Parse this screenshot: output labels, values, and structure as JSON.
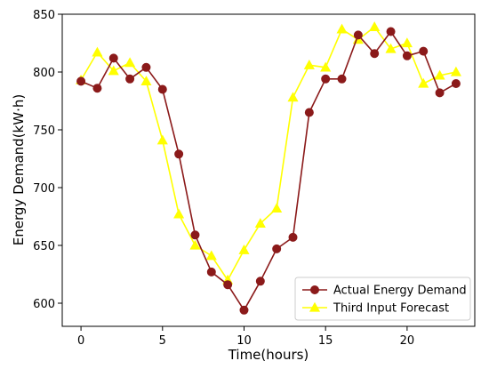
{
  "chart_data": {
    "type": "line",
    "title": "",
    "xlabel": "Time(hours)",
    "ylabel": "Energy Demand(kW·h)",
    "xlim": [
      -1.15,
      24.15
    ],
    "ylim": [
      580,
      850
    ],
    "xticks": [
      0,
      5,
      10,
      15,
      20
    ],
    "yticks": [
      600,
      650,
      700,
      750,
      800,
      850
    ],
    "grid": false,
    "legend_position": "bottom-right",
    "x": [
      0,
      1,
      2,
      3,
      4,
      5,
      6,
      7,
      8,
      9,
      10,
      11,
      12,
      13,
      14,
      15,
      16,
      17,
      18,
      19,
      20,
      21,
      22,
      23
    ],
    "series": [
      {
        "name": "Actual Energy Demand",
        "color": "#8b1a1a",
        "marker": "circle",
        "values": [
          792,
          786,
          812,
          794,
          804,
          785,
          729,
          659,
          627,
          616,
          594,
          619,
          647,
          657,
          765,
          794,
          794,
          832,
          816,
          835,
          814,
          818,
          782,
          790
        ]
      },
      {
        "name": "Third Input Forecast",
        "color": "#ffff00",
        "marker": "triangle",
        "values": [
          793,
          817,
          801,
          808,
          792,
          741,
          677,
          650,
          641,
          620,
          646,
          669,
          682,
          778,
          806,
          804,
          837,
          828,
          839,
          820,
          825,
          790,
          797,
          800
        ]
      }
    ]
  }
}
